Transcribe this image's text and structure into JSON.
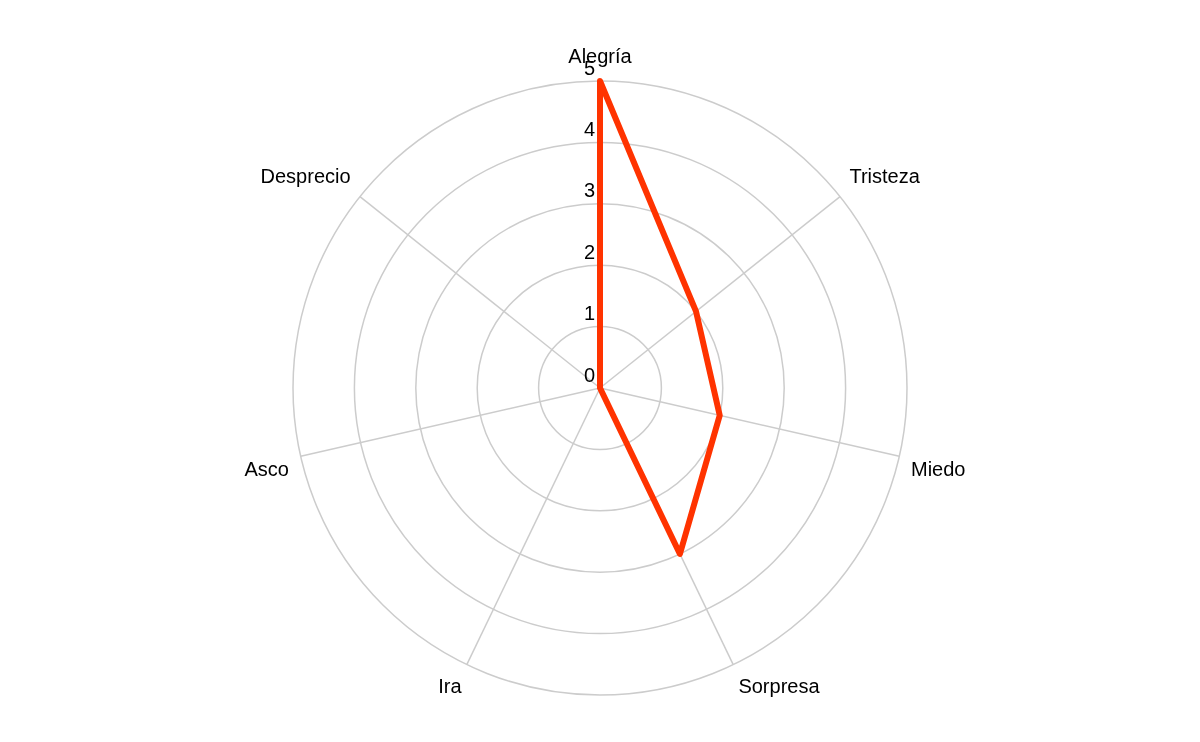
{
  "chart_data": {
    "type": "radar",
    "categories": [
      "Alegría",
      "Tristeza",
      "Miedo",
      "Sorpresa",
      "Ira",
      "Asco",
      "Desprecio"
    ],
    "series": [
      {
        "color": "#ff3300",
        "values": [
          5,
          2,
          2,
          3,
          0,
          0,
          0
        ]
      }
    ],
    "ylim": [
      0,
      5
    ],
    "yticks": [
      0,
      1,
      2,
      3,
      4,
      5
    ],
    "grid": true,
    "legend": false,
    "marker": "none",
    "line_style": "solid"
  }
}
